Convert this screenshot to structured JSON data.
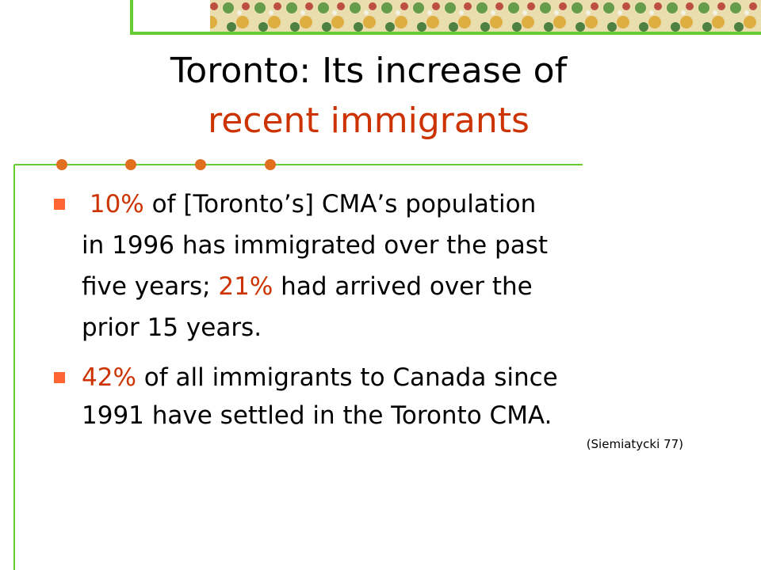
{
  "accent_color": "#cc3300",
  "title": {
    "lines": [
      [
        {
          "text": "Toronto: Its increase of",
          "highlight": false
        }
      ],
      [
        {
          "text": "recent immigrants",
          "highlight": true
        }
      ]
    ]
  },
  "bullets": [
    {
      "lines": [
        [
          {
            "text": " 10%",
            "highlight": true
          },
          {
            "text": " of [Toronto’s] CMA’s population",
            "highlight": false
          }
        ],
        [
          {
            "text": "in 1996 has immigrated over the past",
            "highlight": false
          }
        ],
        [
          {
            "text": "five years; ",
            "highlight": false
          },
          {
            "text": "21%",
            "highlight": true
          },
          {
            "text": " had arrived over the",
            "highlight": false
          }
        ],
        [
          {
            "text": "prior 15 years.",
            "highlight": false
          }
        ]
      ]
    },
    {
      "lines": [
        [
          {
            "text": "42%",
            "highlight": true
          },
          {
            "text": " of all immigrants to Canada since",
            "highlight": false
          }
        ],
        [
          {
            "text": "1991 have settled in the Toronto CMA.",
            "highlight": false
          }
        ]
      ]
    }
  ],
  "citation": "(Siemiatycki 77)"
}
